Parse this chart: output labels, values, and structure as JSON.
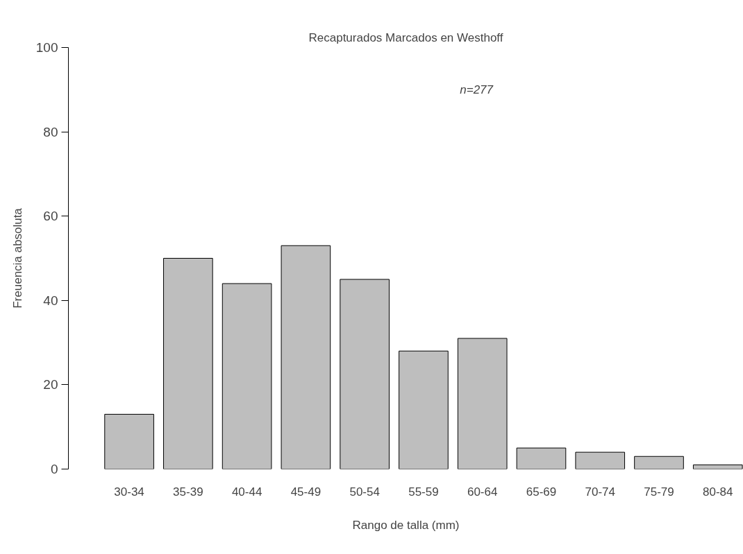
{
  "chart_data": {
    "type": "bar",
    "title": "Recapturados Marcados en Westhoff",
    "xlabel": "Rango de talla (mm)",
    "ylabel": "Freuencia absoluta",
    "categories": [
      "30-34",
      "35-39",
      "40-44",
      "45-49",
      "50-54",
      "55-59",
      "60-64",
      "65-69",
      "70-74",
      "75-79",
      "80-84"
    ],
    "values": [
      13,
      50,
      44,
      53,
      45,
      28,
      31,
      5,
      4,
      3,
      1
    ],
    "color": "#bebebe",
    "ylim": [
      0,
      100
    ],
    "yticks": [
      0,
      20,
      40,
      60,
      80,
      100
    ],
    "grid": false,
    "annotations": [
      "n=277"
    ]
  }
}
